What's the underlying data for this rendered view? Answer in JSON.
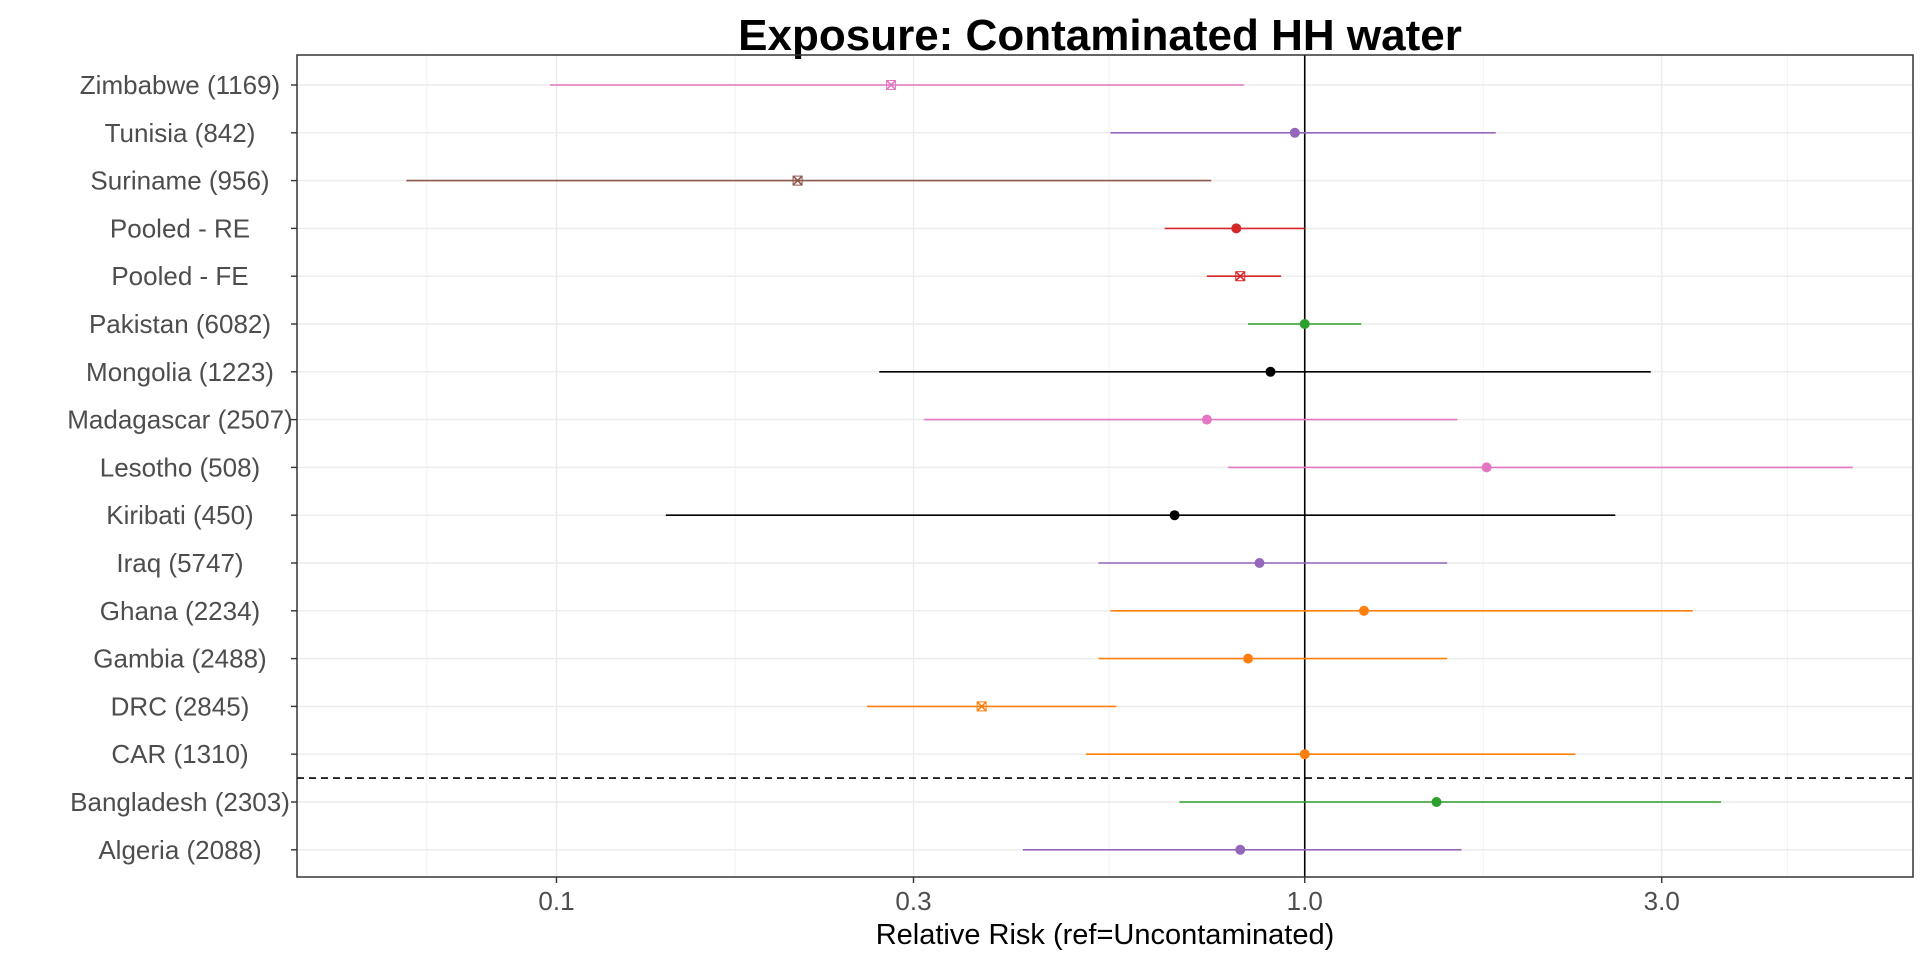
{
  "chart_data": {
    "type": "forest",
    "title": "Exposure: Contaminated HH water",
    "xlabel": "Relative Risk (ref=Uncontaminated)",
    "x_scale": "log",
    "xlim": [
      0.045,
      6.5
    ],
    "x_ticks": [
      {
        "value": 0.1,
        "label": "0.1"
      },
      {
        "value": 0.3,
        "label": "0.3"
      },
      {
        "value": 1.0,
        "label": "1.0"
      },
      {
        "value": 3.0,
        "label": "3.0"
      }
    ],
    "reference_line": 1.0,
    "separator_between": [
      "CAR (1310)",
      "Bangladesh (2303)"
    ],
    "grid": true,
    "legend": "none",
    "rows": [
      {
        "label": "Zimbabwe (1169)",
        "estimate": 0.28,
        "lower": 0.098,
        "upper": 0.83,
        "color": "#e377c2",
        "marker": "cross"
      },
      {
        "label": "Tunisia (842)",
        "estimate": 0.97,
        "lower": 0.55,
        "upper": 1.8,
        "color": "#9467bd",
        "marker": "dot"
      },
      {
        "label": "Suriname (956)",
        "estimate": 0.21,
        "lower": 0.063,
        "upper": 0.75,
        "color": "#8c564b",
        "marker": "cross"
      },
      {
        "label": "Pooled - RE",
        "estimate": 0.81,
        "lower": 0.65,
        "upper": 1.0,
        "color": "#d62728",
        "marker": "dot"
      },
      {
        "label": "Pooled - FE",
        "estimate": 0.82,
        "lower": 0.74,
        "upper": 0.93,
        "color": "#d62728",
        "marker": "cross"
      },
      {
        "label": "Pakistan (6082)",
        "estimate": 1.0,
        "lower": 0.84,
        "upper": 1.19,
        "color": "#2ca02c",
        "marker": "dot"
      },
      {
        "label": "Mongolia (1223)",
        "estimate": 0.9,
        "lower": 0.27,
        "upper": 2.9,
        "color": "#000000",
        "marker": "dot"
      },
      {
        "label": "Madagascar (2507)",
        "estimate": 0.74,
        "lower": 0.31,
        "upper": 1.6,
        "color": "#e377c2",
        "marker": "dot"
      },
      {
        "label": "Lesotho (508)",
        "estimate": 1.75,
        "lower": 0.79,
        "upper": 5.4,
        "color": "#e377c2",
        "marker": "dot"
      },
      {
        "label": "Kiribati (450)",
        "estimate": 0.67,
        "lower": 0.14,
        "upper": 2.6,
        "color": "#000000",
        "marker": "dot"
      },
      {
        "label": "Iraq (5747)",
        "estimate": 0.87,
        "lower": 0.53,
        "upper": 1.55,
        "color": "#9467bd",
        "marker": "dot"
      },
      {
        "label": "Ghana (2234)",
        "estimate": 1.2,
        "lower": 0.55,
        "upper": 3.3,
        "color": "#ff7f0e",
        "marker": "dot"
      },
      {
        "label": "Gambia (2488)",
        "estimate": 0.84,
        "lower": 0.53,
        "upper": 1.55,
        "color": "#ff7f0e",
        "marker": "dot"
      },
      {
        "label": "DRC (2845)",
        "estimate": 0.37,
        "lower": 0.26,
        "upper": 0.56,
        "color": "#ff7f0e",
        "marker": "cross"
      },
      {
        "label": "CAR (1310)",
        "estimate": 1.0,
        "lower": 0.51,
        "upper": 2.3,
        "color": "#ff7f0e",
        "marker": "dot"
      },
      {
        "label": "Bangladesh (2303)",
        "estimate": 1.5,
        "lower": 0.68,
        "upper": 3.6,
        "color": "#2ca02c",
        "marker": "dot"
      },
      {
        "label": "Algeria (2088)",
        "estimate": 0.82,
        "lower": 0.42,
        "upper": 1.62,
        "color": "#9467bd",
        "marker": "dot"
      }
    ]
  }
}
